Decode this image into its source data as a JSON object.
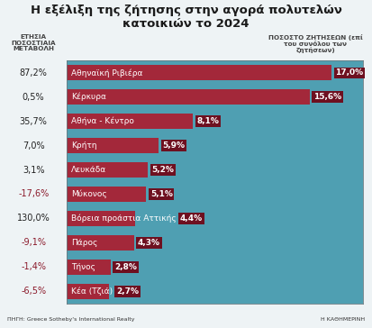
{
  "chart_data": {
    "type": "bar",
    "orientation": "horizontal",
    "title": "Η εξέλιξη της ζήτησης στην αγορά πολυτελών κατοικιών το 2024",
    "categories": [
      "Αθηναϊκή Ριβιέρα",
      "Κέρκυρα",
      "Αθήνα - Κέντρο",
      "Κρήτη",
      "Λευκάδα",
      "Μύκονος",
      "Βόρεια προάστια Αττικής",
      "Πάρος",
      "Τήνος",
      "Κέα (Τζιά)"
    ],
    "values": [
      17.0,
      15.6,
      8.1,
      5.9,
      5.2,
      5.1,
      4.4,
      4.3,
      2.8,
      2.7
    ],
    "value_labels": [
      "17,0%",
      "15,6%",
      "8,1%",
      "5,9%",
      "5,2%",
      "5,1%",
      "4,4%",
      "4,3%",
      "2,8%",
      "2,7%"
    ],
    "values_header": "ΠΟΣΟΣΤΟ ΖΗΤΗΣΕΩΝ (επί του συνόλου των ζητήσεων)",
    "change_header": "ΕΤΗΣΙΑ ΠΟΣΟΣΤΙΑΙΑ ΜΕΤΑΒΟΛΗ",
    "change_values": [
      87.2,
      0.5,
      35.7,
      7.0,
      3.1,
      -17.6,
      130.0,
      -9.1,
      -1.4,
      -6.5
    ],
    "change_labels": [
      "87,2%",
      "0,5%",
      "35,7%",
      "7,0%",
      "3,1%",
      "-17,6%",
      "130,0%",
      "-9,1%",
      "-1,4%",
      "-6,5%"
    ],
    "source": "ΠΗΓΗ: Greece Sotheby's International Realty",
    "publisher": "Η ΚΑΘΗΜΕΡΙΝΗ",
    "color": "#a3283a",
    "xlim": [
      0,
      19
    ],
    "xticks": [],
    "data_labels": true,
    "tick_labels": false,
    "grid": false
  }
}
